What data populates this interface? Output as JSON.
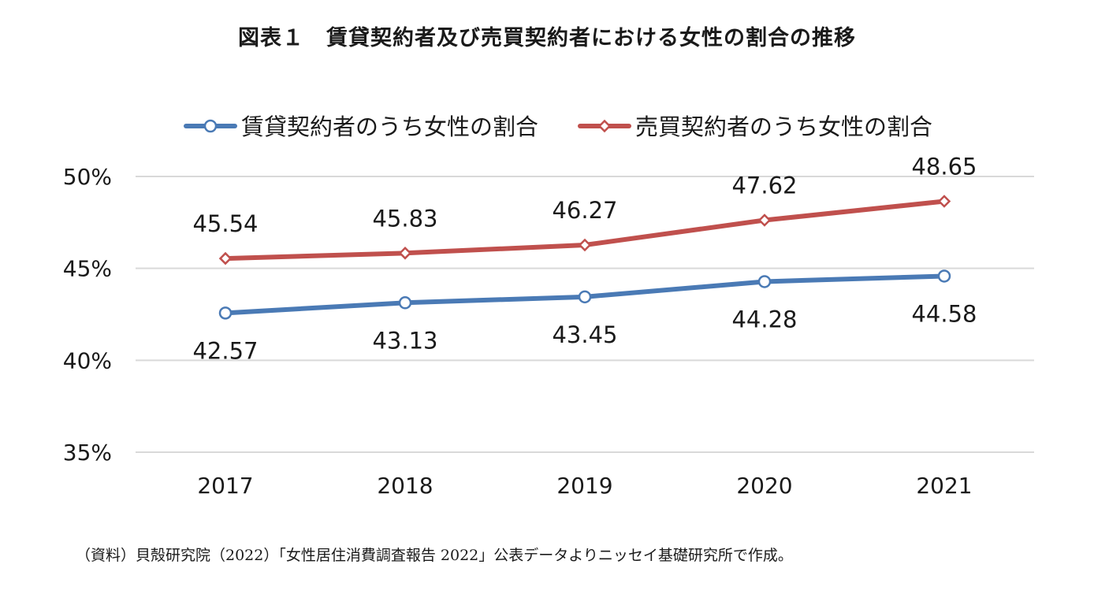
{
  "chart_data": {
    "type": "line",
    "title": "図表１　賃貸契約者及び売買契約者における女性の割合の推移",
    "categories": [
      "2017",
      "2018",
      "2019",
      "2020",
      "2021"
    ],
    "series": [
      {
        "name": "賃貸契約者のうち女性の割合",
        "values": [
          42.57,
          43.13,
          43.45,
          44.28,
          44.58
        ],
        "labels": [
          "42.57",
          "43.13",
          "43.45",
          "44.28",
          "44.58"
        ],
        "color": "#4a7ab5",
        "marker": "circle",
        "label_position": "below"
      },
      {
        "name": "売買契約者のうち女性の割合",
        "values": [
          45.54,
          45.83,
          46.27,
          47.62,
          48.65
        ],
        "labels": [
          "45.54",
          "45.83",
          "46.27",
          "47.62",
          "48.65"
        ],
        "color": "#c0504d",
        "marker": "diamond",
        "label_position": "above"
      }
    ],
    "y_ticks": [
      "35%",
      "40%",
      "45%",
      "50%"
    ],
    "ylim": [
      35,
      50
    ],
    "grid": true,
    "legend_position": "top",
    "source": "（資料）貝殻研究院（2022）「女性居住消費調査報告 2022」公表データよりニッセイ基礎研究所で作成。"
  }
}
